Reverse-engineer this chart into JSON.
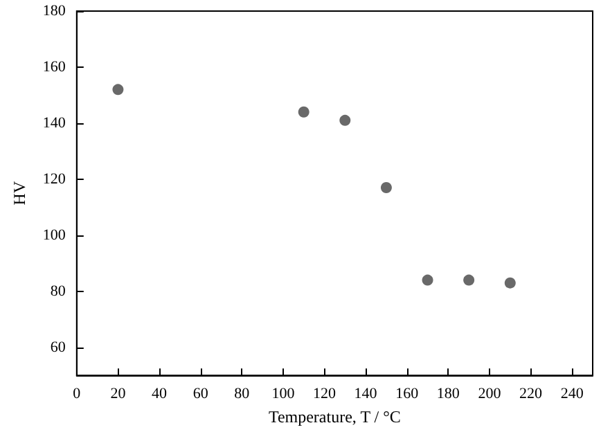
{
  "chart_data": {
    "type": "scatter",
    "xlabel": "Temperature, T / °C",
    "ylabel": "HV",
    "x": [
      20,
      110,
      130,
      150,
      170,
      190,
      210
    ],
    "series": [
      {
        "color": "#444444",
        "values": [
          152,
          144,
          141,
          117,
          84,
          84,
          83
        ]
      }
    ],
    "xlim": [
      0,
      250
    ],
    "xticks": [
      0,
      20,
      40,
      60,
      80,
      100,
      120,
      140,
      160,
      180,
      200,
      220,
      240
    ],
    "ylim": [
      50,
      180
    ],
    "yticks": [
      60,
      80,
      100,
      120,
      140,
      160,
      180
    ],
    "marker": "circle"
  }
}
